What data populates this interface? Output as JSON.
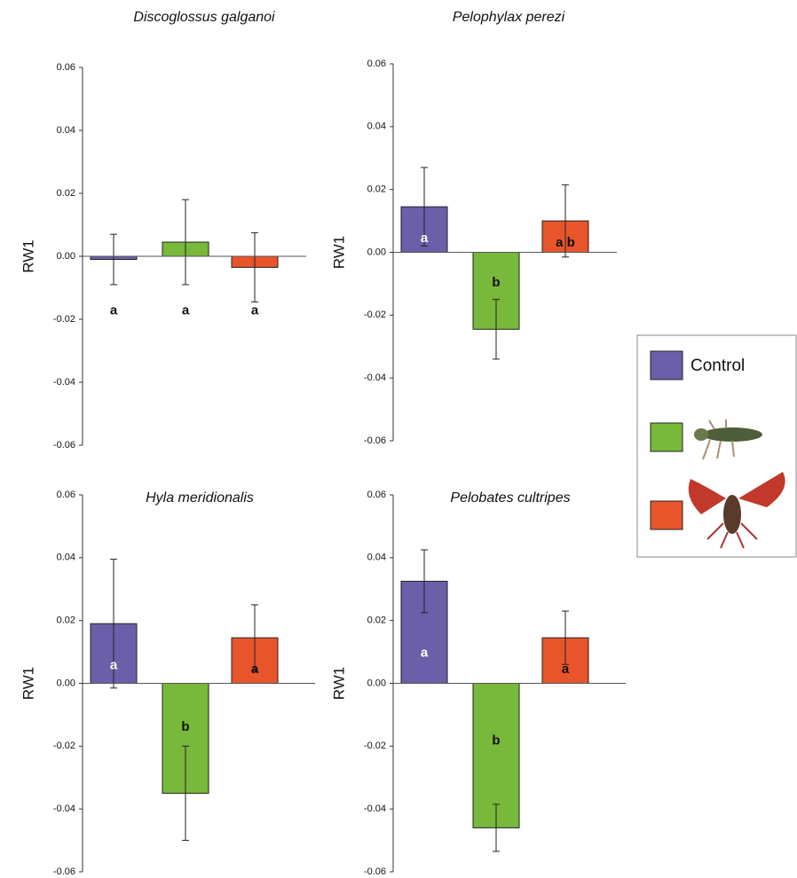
{
  "chart_data": [
    {
      "type": "bar",
      "title": "Discoglossus galganoi",
      "y_label": "RW1",
      "values": [
        -0.001,
        0.0045,
        -0.0035
      ],
      "errors": [
        0.008,
        0.0135,
        0.011
      ],
      "annotations": [
        "a",
        "a",
        "a"
      ],
      "colors": [
        "#6b5fa9",
        "#78b83a",
        "#e8552b"
      ],
      "ylim": [
        -0.06,
        0.06
      ],
      "yticks": [
        -0.06,
        -0.04,
        -0.02,
        {
          "value": 0,
          "label": "0.00"
        },
        0.02,
        0.04,
        0.06
      ]
    },
    {
      "type": "bar",
      "title": "Pelophylax perezi",
      "y_label": "RW1",
      "values": [
        0.0145,
        -0.0245,
        0.01
      ],
      "errors": [
        0.0125,
        0.0095,
        0.0115
      ],
      "annotations": [
        "a",
        "b",
        "a b"
      ],
      "colors": [
        "#6b5fa9",
        "#78b83a",
        "#e8552b"
      ],
      "ylim": [
        -0.06,
        0.06
      ],
      "yticks": [
        -0.06,
        -0.04,
        -0.02,
        {
          "value": 0,
          "label": "0.00"
        },
        0.02,
        0.04,
        0.06
      ]
    },
    {
      "type": "bar",
      "title": "Hyla meridionalis",
      "y_label": "RW1",
      "values": [
        0.019,
        -0.035,
        0.0145
      ],
      "errors": [
        0.0205,
        0.015,
        0.0105
      ],
      "annotations": [
        "a",
        "b",
        "a"
      ],
      "colors": [
        "#6b5fa9",
        "#78b83a",
        "#e8552b"
      ],
      "ylim": [
        -0.06,
        0.06
      ],
      "yticks": [
        -0.06,
        -0.04,
        -0.02,
        {
          "value": 0,
          "label": "0.00"
        },
        0.02,
        0.04,
        0.06
      ]
    },
    {
      "type": "bar",
      "title": "Pelobates cultripes",
      "y_label": "RW1",
      "values": [
        0.0325,
        -0.046,
        0.0145
      ],
      "errors": [
        0.01,
        0.0075,
        0.0085
      ],
      "annotations": [
        "a",
        "b",
        "a"
      ],
      "colors": [
        "#6b5fa9",
        "#78b83a",
        "#e8552b"
      ],
      "ylim": [
        -0.06,
        0.06
      ],
      "yticks": [
        -0.06,
        -0.04,
        -0.02,
        {
          "value": 0,
          "label": "0.00"
        },
        0.02,
        0.04,
        0.06
      ]
    }
  ],
  "legend": {
    "entries": [
      {
        "label": "Control",
        "color": "#6b5fa9"
      },
      {
        "color": "#78b83a"
      },
      {
        "color": "#e8552b"
      }
    ]
  }
}
